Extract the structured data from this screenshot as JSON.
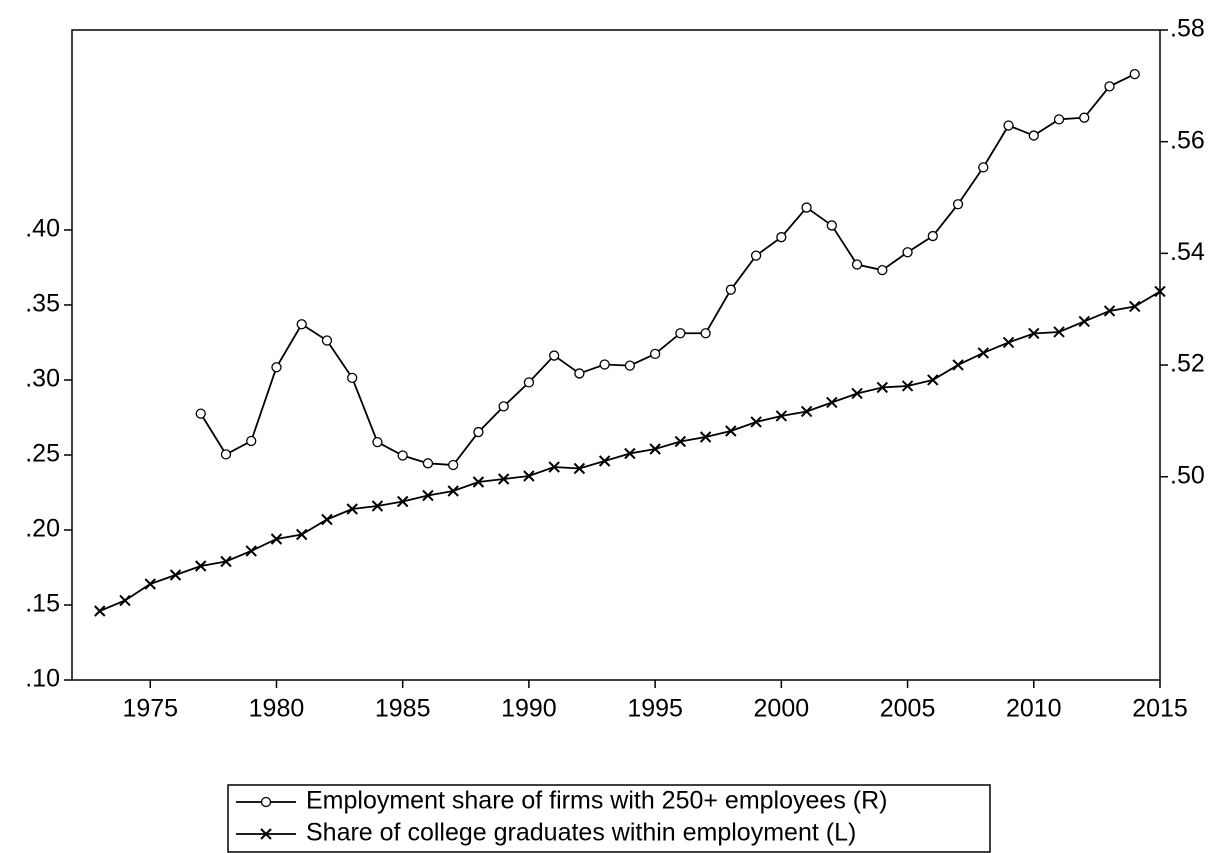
{
  "chart_data": {
    "type": "line",
    "x": [
      1973,
      1974,
      1975,
      1976,
      1977,
      1978,
      1979,
      1980,
      1981,
      1982,
      1983,
      1984,
      1985,
      1986,
      1987,
      1988,
      1989,
      1990,
      1991,
      1992,
      1993,
      1994,
      1995,
      1996,
      1997,
      1998,
      1999,
      2000,
      2001,
      2002,
      2003,
      2004,
      2005,
      2006,
      2007,
      2008,
      2009,
      2010,
      2011,
      2012,
      2013,
      2014,
      2015
    ],
    "series": [
      {
        "name": "Employment share of firms with 250+ employees (R)",
        "color": "#000000",
        "marker": "circle",
        "axis": "y2",
        "values": [
          null,
          null,
          null,
          null,
          0.5113,
          0.504,
          0.5064,
          0.5196,
          0.5273,
          0.5244,
          0.5177,
          0.5062,
          0.5038,
          0.5024,
          0.5021,
          0.508,
          0.5126,
          0.5169,
          0.5217,
          0.5185,
          0.5201,
          0.5199,
          0.522,
          0.5257,
          0.5257,
          0.5335,
          0.5396,
          0.5429,
          0.5482,
          0.545,
          0.538,
          0.537,
          0.5402,
          0.5431,
          0.5488,
          0.5554,
          0.5629,
          0.5611,
          0.564,
          0.5643,
          0.5699,
          0.5721,
          null
        ]
      },
      {
        "name": "Share of college graduates within employment (L)",
        "color": "#000000",
        "marker": "x",
        "axis": "y",
        "values": [
          0.146,
          0.153,
          0.164,
          0.17,
          0.176,
          0.179,
          0.186,
          0.194,
          0.197,
          0.207,
          0.214,
          0.216,
          0.219,
          0.223,
          0.226,
          0.232,
          0.234,
          0.236,
          0.242,
          0.241,
          0.246,
          0.251,
          0.254,
          0.259,
          0.262,
          0.266,
          0.272,
          0.276,
          0.279,
          0.285,
          0.291,
          0.295,
          0.296,
          0.3,
          0.31,
          0.318,
          0.325,
          0.331,
          0.332,
          0.339,
          0.346,
          0.349,
          0.359
        ]
      }
    ],
    "xlim": [
      1971.9,
      2015
    ],
    "xticks": [
      1975,
      1980,
      1985,
      1990,
      1995,
      2000,
      2005,
      2010,
      2015
    ],
    "ylim": [
      0.1,
      0.5333
    ],
    "yticks": [
      {
        "value": 0.1,
        "label": ".10"
      },
      {
        "value": 0.15,
        "label": ".15"
      },
      {
        "value": 0.2,
        "label": ".20"
      },
      {
        "value": 0.25,
        "label": ".25"
      },
      {
        "value": 0.3,
        "label": ".30"
      },
      {
        "value": 0.35,
        "label": ".35"
      },
      {
        "value": 0.4,
        "label": ".40"
      }
    ],
    "y2lim": [
      0.4636,
      0.58
    ],
    "y2ticks": [
      {
        "value": 0.5,
        "label": ".50"
      },
      {
        "value": 0.52,
        "label": ".52"
      },
      {
        "value": 0.54,
        "label": ".54"
      },
      {
        "value": 0.56,
        "label": ".56"
      },
      {
        "value": 0.58,
        "label": ".58"
      }
    ],
    "legend": "bottom"
  }
}
